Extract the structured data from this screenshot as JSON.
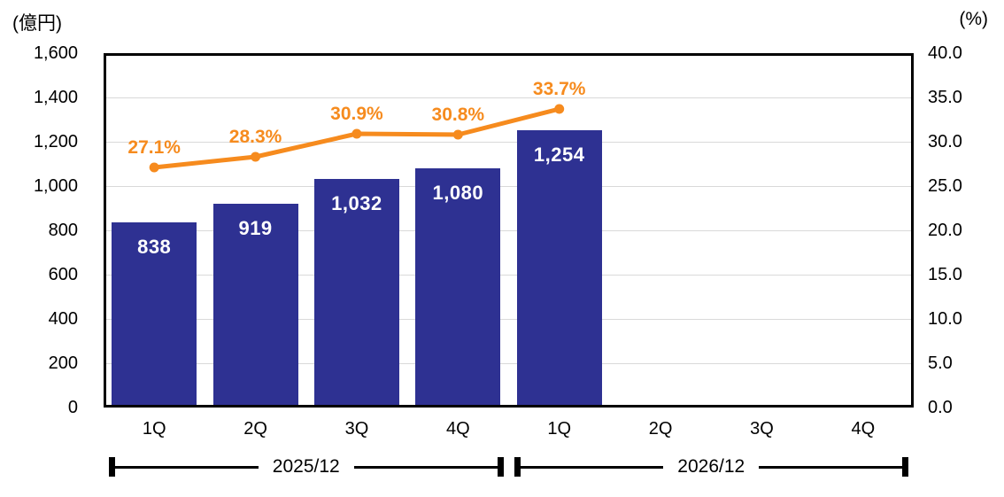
{
  "chart_data": {
    "type": "bar",
    "subtype": "bar-line-combo",
    "categories": [
      "1Q",
      "2Q",
      "3Q",
      "4Q",
      "1Q",
      "2Q",
      "3Q",
      "4Q"
    ],
    "groups": [
      {
        "label": "2025/12",
        "start": 0,
        "end": 3
      },
      {
        "label": "2026/12",
        "start": 4,
        "end": 7
      }
    ],
    "series": [
      {
        "name": "amount-bars",
        "type": "bar",
        "axis": "left",
        "values": [
          838,
          919,
          1032,
          1080,
          1254,
          null,
          null,
          null
        ],
        "labels": [
          "838",
          "919",
          "1,032",
          "1,080",
          "1,254",
          null,
          null,
          null
        ],
        "color": "#2e3192",
        "label_color": "#ffffff"
      },
      {
        "name": "ratio-line",
        "type": "line",
        "axis": "right",
        "values": [
          27.1,
          28.3,
          30.9,
          30.8,
          33.7,
          null,
          null,
          null
        ],
        "labels": [
          "27.1%",
          "28.3%",
          "30.9%",
          "30.8%",
          "33.7%",
          null,
          null,
          null
        ],
        "color": "#f68b1e"
      }
    ],
    "left_axis": {
      "title": "(億円)",
      "min": 0,
      "max": 1600,
      "step": 200,
      "ticks": [
        "1,600",
        "1,400",
        "1,200",
        "1,000",
        "800",
        "600",
        "400",
        "200",
        "0"
      ]
    },
    "right_axis": {
      "title": "(%)",
      "min": 0,
      "max": 40,
      "step": 5,
      "ticks": [
        "40.0",
        "35.0",
        "30.0",
        "25.0",
        "20.0",
        "15.0",
        "10.0",
        "5.0",
        "0.0"
      ]
    },
    "grid": true,
    "colors": {
      "bar": "#2e3192",
      "line": "#f68b1e",
      "grid": "#d9d9d9",
      "axis_border": "#000000",
      "text": "#000000"
    }
  }
}
